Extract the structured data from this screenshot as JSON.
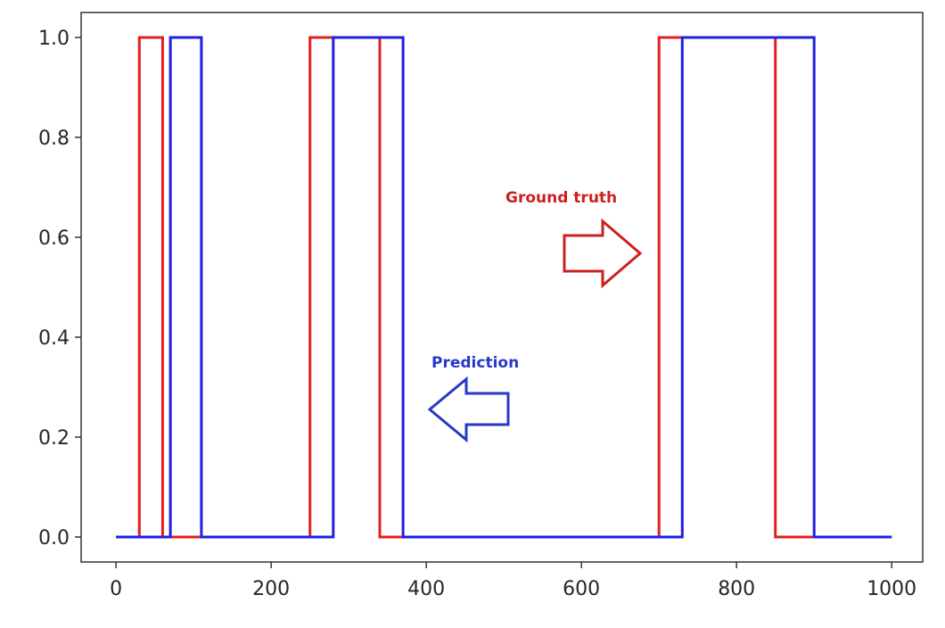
{
  "chart_data": {
    "type": "line",
    "x_ticks": [
      "0",
      "200",
      "400",
      "600",
      "800",
      "1000"
    ],
    "y_ticks": [
      "0.0",
      "0.2",
      "0.4",
      "0.6",
      "0.8",
      "1.0"
    ],
    "xlim": [
      -45,
      1040
    ],
    "ylim": [
      -0.05,
      1.05
    ],
    "grid": false,
    "series": [
      {
        "color": "#e02020",
        "step": true,
        "x": [
          0,
          30,
          30,
          60,
          60,
          250,
          250,
          340,
          340,
          700,
          700,
          850,
          850,
          1000
        ],
        "y": [
          0,
          0,
          1,
          1,
          0,
          0,
          1,
          1,
          0,
          0,
          1,
          1,
          0,
          0
        ]
      },
      {
        "color": "#2020e0",
        "step": true,
        "x": [
          0,
          70,
          70,
          110,
          110,
          280,
          280,
          370,
          370,
          730,
          730,
          900,
          900,
          1000
        ],
        "y": [
          0,
          0,
          1,
          1,
          0,
          0,
          1,
          1,
          0,
          0,
          1,
          1,
          0,
          0
        ]
      }
    ],
    "annotations": [
      {
        "text": "Ground truth",
        "color": "#cc2020",
        "arrow": "right"
      },
      {
        "text": "Prediction",
        "color": "#2838c8",
        "arrow": "left"
      }
    ]
  }
}
